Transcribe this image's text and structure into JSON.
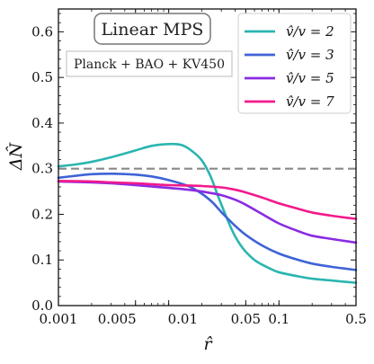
{
  "chart_data": {
    "type": "line",
    "xlabel": "r̂",
    "ylabel": "ΔN̂",
    "xscale": "log",
    "xlim": [
      0.001,
      0.5
    ],
    "ylim": [
      0.0,
      0.65
    ],
    "x_ticks": [
      {
        "value": 0.001,
        "label": "0.001"
      },
      {
        "value": 0.005,
        "label": "0.005"
      },
      {
        "value": 0.01,
        "label": "0.01"
      },
      {
        "value": 0.05,
        "label": "0.05"
      },
      {
        "value": 0.1,
        "label": "0.1"
      },
      {
        "value": 0.5,
        "label": "0.5"
      }
    ],
    "y_ticks": [
      {
        "value": 0.0,
        "label": "0.0"
      },
      {
        "value": 0.1,
        "label": "0.1"
      },
      {
        "value": 0.2,
        "label": "0.2"
      },
      {
        "value": 0.3,
        "label": "0.3"
      },
      {
        "value": 0.4,
        "label": "0.4"
      },
      {
        "value": 0.5,
        "label": "0.5"
      },
      {
        "value": 0.6,
        "label": "0.6"
      }
    ],
    "grid": false,
    "legend_position": "top-right",
    "annotations": {
      "title_box": "Linear MPS",
      "dataset_box": "Planck + BAO + KV450"
    },
    "reference_line": {
      "y": 0.3,
      "style": "dashed",
      "color": "#888888"
    },
    "series": [
      {
        "name": "v̂/v = 2",
        "color": "#2ab5b0",
        "x": [
          0.001,
          0.0015,
          0.002,
          0.003,
          0.005,
          0.007,
          0.01,
          0.013,
          0.016,
          0.02,
          0.024,
          0.028,
          0.032,
          0.036,
          0.04,
          0.045,
          0.05,
          0.06,
          0.07,
          0.085,
          0.1,
          0.15,
          0.2,
          0.3,
          0.4,
          0.5
        ],
        "values": [
          0.305,
          0.31,
          0.315,
          0.325,
          0.34,
          0.35,
          0.354,
          0.352,
          0.34,
          0.318,
          0.283,
          0.24,
          0.205,
          0.175,
          0.152,
          0.132,
          0.118,
          0.1,
          0.09,
          0.08,
          0.073,
          0.064,
          0.059,
          0.055,
          0.052,
          0.05
        ]
      },
      {
        "name": "v̂/v = 3",
        "color": "#3f63d6",
        "x": [
          0.001,
          0.0015,
          0.002,
          0.003,
          0.005,
          0.007,
          0.01,
          0.015,
          0.02,
          0.025,
          0.03,
          0.04,
          0.05,
          0.07,
          0.1,
          0.15,
          0.2,
          0.3,
          0.5
        ],
        "values": [
          0.28,
          0.285,
          0.288,
          0.289,
          0.287,
          0.283,
          0.275,
          0.262,
          0.245,
          0.226,
          0.205,
          0.175,
          0.155,
          0.132,
          0.114,
          0.1,
          0.092,
          0.085,
          0.078
        ]
      },
      {
        "name": "v̂/v = 5",
        "color": "#8a2be2",
        "x": [
          0.001,
          0.002,
          0.003,
          0.005,
          0.007,
          0.01,
          0.015,
          0.02,
          0.03,
          0.04,
          0.05,
          0.07,
          0.1,
          0.15,
          0.2,
          0.3,
          0.5
        ],
        "values": [
          0.272,
          0.27,
          0.268,
          0.264,
          0.261,
          0.258,
          0.254,
          0.25,
          0.242,
          0.232,
          0.221,
          0.201,
          0.18,
          0.163,
          0.153,
          0.146,
          0.138
        ]
      },
      {
        "name": "v̂/v = 7",
        "color": "#f2198d",
        "x": [
          0.001,
          0.002,
          0.003,
          0.005,
          0.007,
          0.01,
          0.015,
          0.02,
          0.03,
          0.04,
          0.05,
          0.07,
          0.1,
          0.15,
          0.2,
          0.3,
          0.5
        ],
        "values": [
          0.273,
          0.272,
          0.27,
          0.268,
          0.266,
          0.264,
          0.263,
          0.262,
          0.259,
          0.254,
          0.248,
          0.237,
          0.224,
          0.212,
          0.204,
          0.197,
          0.19
        ]
      }
    ]
  }
}
